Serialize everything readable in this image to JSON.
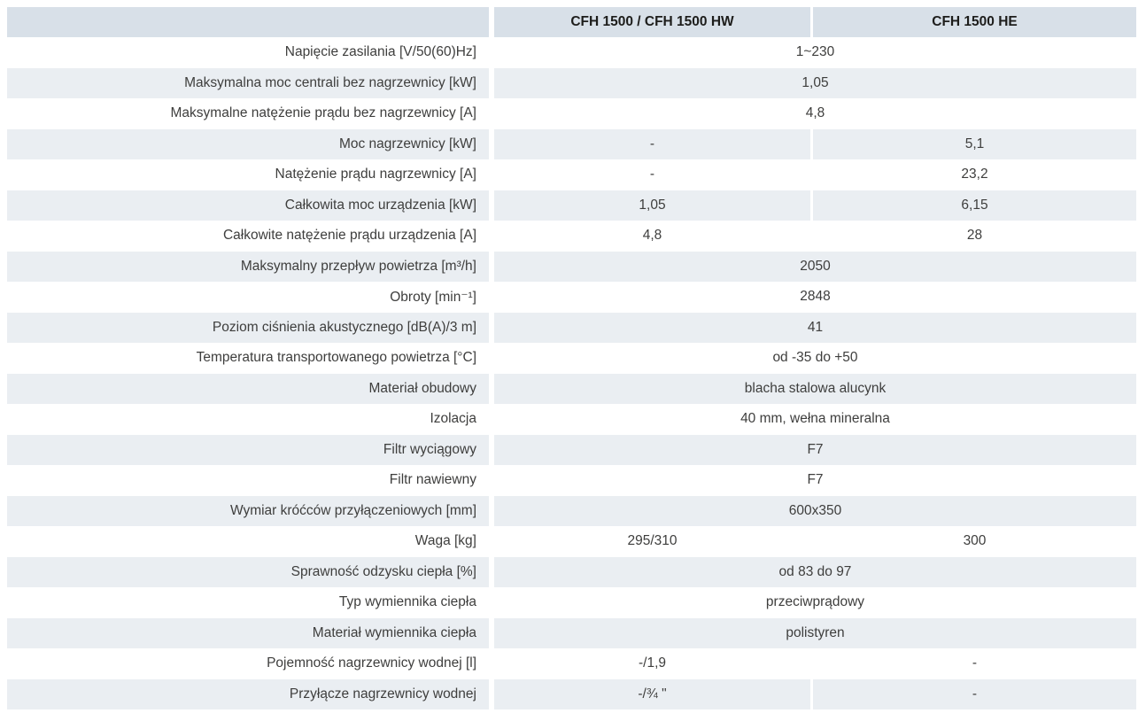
{
  "table": {
    "columns": [
      "",
      "CFH 1500 / CFH 1500 HW",
      "CFH 1500 HE"
    ],
    "rows": [
      {
        "label": "Napięcie zasilania [V/50(60)Hz]",
        "merged": "1~230"
      },
      {
        "label": "Maksymalna moc centrali bez nagrzewnicy [kW]",
        "merged": "1,05"
      },
      {
        "label": "Maksymalne natężenie prądu bez nagrzewnicy [A]",
        "merged": "4,8"
      },
      {
        "label": "Moc nagrzewnicy [kW]",
        "col1": "-",
        "col2": "5,1"
      },
      {
        "label": "Natężenie prądu nagrzewnicy [A]",
        "col1": "-",
        "col2": "23,2"
      },
      {
        "label": "Całkowita moc urządzenia [kW]",
        "col1": "1,05",
        "col2": "6,15"
      },
      {
        "label": "Całkowite natężenie prądu urządzenia [A]",
        "col1": "4,8",
        "col2": "28"
      },
      {
        "label": "Maksymalny przepływ powietrza [m³/h]",
        "merged": "2050"
      },
      {
        "label": "Obroty [min⁻¹]",
        "merged": "2848"
      },
      {
        "label": "Poziom ciśnienia akustycznego [dB(A)/3 m]",
        "merged": "41"
      },
      {
        "label": "Temperatura transportowanego powietrza [°C]",
        "merged": "od -35 do +50"
      },
      {
        "label": "Materiał obudowy",
        "merged": "blacha stalowa alucynk"
      },
      {
        "label": "Izolacja",
        "merged": "40 mm, wełna mineralna"
      },
      {
        "label": "Filtr wyciągowy",
        "merged": "F7"
      },
      {
        "label": "Filtr nawiewny",
        "merged": "F7"
      },
      {
        "label": "Wymiar króćców przyłączeniowych [mm]",
        "merged": "600x350"
      },
      {
        "label": "Waga [kg]",
        "col1": "295/310",
        "col2": "300"
      },
      {
        "label": "Sprawność odzysku ciepła [%]",
        "merged": "od 83 do 97"
      },
      {
        "label": "Typ wymiennika ciepła",
        "merged": "przeciwprądowy"
      },
      {
        "label": "Materiał wymiennika ciepła",
        "merged": "polistyren"
      },
      {
        "label": "Pojemność nagrzewnicy wodnej [l]",
        "col1": "-/1,9",
        "col2": "-"
      },
      {
        "label": "Przyłącze nagrzewnicy wodnej",
        "col1": "-/¾ \"",
        "col2": "-"
      }
    ],
    "colors": {
      "header_bg": "#d8e0e8",
      "band_bg": "#eaeef2",
      "header_text": "#1d1d1b",
      "body_text": "#3e3e3d"
    }
  }
}
